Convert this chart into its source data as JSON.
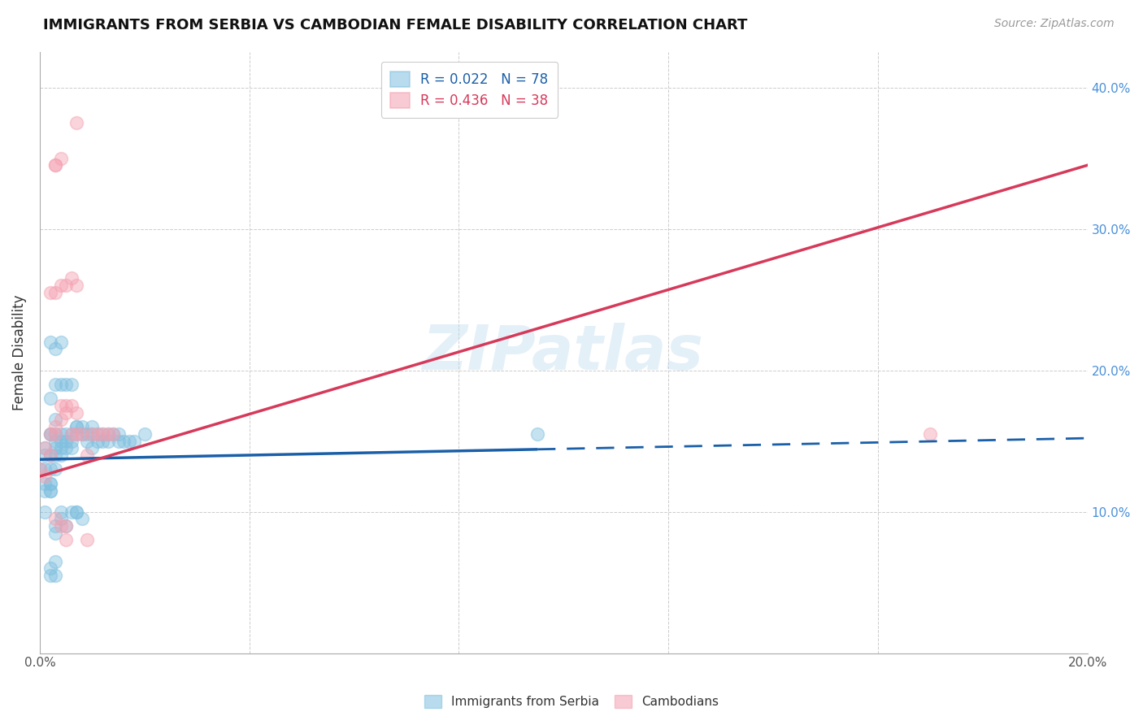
{
  "title": "IMMIGRANTS FROM SERBIA VS CAMBODIAN FEMALE DISABILITY CORRELATION CHART",
  "source": "Source: ZipAtlas.com",
  "ylabel_label": "Female Disability",
  "x_min": 0.0,
  "x_max": 0.2,
  "y_min": 0.0,
  "y_max": 0.425,
  "x_ticks": [
    0.0,
    0.04,
    0.08,
    0.12,
    0.16,
    0.2
  ],
  "y_ticks": [
    0.0,
    0.1,
    0.2,
    0.3,
    0.4
  ],
  "y_tick_labels_right": [
    "",
    "10.0%",
    "20.0%",
    "30.0%",
    "40.0%"
  ],
  "serbia_color": "#7fbfdf",
  "cambodian_color": "#f4a0b0",
  "serbia_R": 0.022,
  "serbia_N": 78,
  "cambodian_R": 0.436,
  "cambodian_N": 38,
  "serbia_trend_color": "#1a5fa8",
  "cambodian_trend_color": "#d63a5a",
  "serbia_trend_solid_end": 0.1,
  "watermark": "ZIPatlas",
  "serbia_points_x": [
    0.0,
    0.001,
    0.001,
    0.001,
    0.001,
    0.001,
    0.002,
    0.002,
    0.002,
    0.002,
    0.002,
    0.002,
    0.003,
    0.003,
    0.003,
    0.003,
    0.003,
    0.004,
    0.004,
    0.004,
    0.004,
    0.005,
    0.005,
    0.005,
    0.006,
    0.006,
    0.006,
    0.007,
    0.007,
    0.008,
    0.008,
    0.009,
    0.009,
    0.01,
    0.01,
    0.01,
    0.011,
    0.011,
    0.012,
    0.012,
    0.013,
    0.013,
    0.014,
    0.015,
    0.015,
    0.016,
    0.017,
    0.018,
    0.02,
    0.001,
    0.002,
    0.002,
    0.003,
    0.003,
    0.004,
    0.004,
    0.005,
    0.006,
    0.007,
    0.007,
    0.008,
    0.002,
    0.003,
    0.004,
    0.005,
    0.006,
    0.002,
    0.003,
    0.004,
    0.002,
    0.003,
    0.007,
    0.095,
    0.003,
    0.002,
    0.003
  ],
  "serbia_points_y": [
    0.13,
    0.14,
    0.145,
    0.13,
    0.12,
    0.115,
    0.155,
    0.155,
    0.14,
    0.13,
    0.12,
    0.115,
    0.155,
    0.15,
    0.145,
    0.14,
    0.13,
    0.155,
    0.15,
    0.145,
    0.14,
    0.155,
    0.15,
    0.145,
    0.155,
    0.15,
    0.145,
    0.16,
    0.155,
    0.16,
    0.155,
    0.155,
    0.15,
    0.16,
    0.155,
    0.145,
    0.155,
    0.15,
    0.155,
    0.15,
    0.155,
    0.15,
    0.155,
    0.155,
    0.15,
    0.15,
    0.15,
    0.15,
    0.155,
    0.1,
    0.12,
    0.115,
    0.085,
    0.09,
    0.1,
    0.095,
    0.09,
    0.1,
    0.1,
    0.1,
    0.095,
    0.18,
    0.19,
    0.19,
    0.19,
    0.19,
    0.22,
    0.215,
    0.22,
    0.055,
    0.055,
    0.16,
    0.155,
    0.165,
    0.06,
    0.065
  ],
  "cambodian_points_x": [
    0.0,
    0.001,
    0.001,
    0.002,
    0.002,
    0.003,
    0.003,
    0.004,
    0.004,
    0.005,
    0.005,
    0.006,
    0.006,
    0.007,
    0.007,
    0.008,
    0.009,
    0.01,
    0.011,
    0.012,
    0.013,
    0.014,
    0.002,
    0.003,
    0.004,
    0.005,
    0.006,
    0.003,
    0.004,
    0.005,
    0.003,
    0.004,
    0.007,
    0.17,
    0.007,
    0.005,
    0.009,
    0.003
  ],
  "cambodian_points_y": [
    0.13,
    0.145,
    0.125,
    0.155,
    0.14,
    0.16,
    0.155,
    0.175,
    0.165,
    0.175,
    0.17,
    0.155,
    0.175,
    0.155,
    0.17,
    0.155,
    0.14,
    0.155,
    0.155,
    0.155,
    0.155,
    0.155,
    0.255,
    0.255,
    0.26,
    0.26,
    0.265,
    0.095,
    0.09,
    0.09,
    0.345,
    0.35,
    0.26,
    0.155,
    0.375,
    0.08,
    0.08,
    0.345
  ]
}
